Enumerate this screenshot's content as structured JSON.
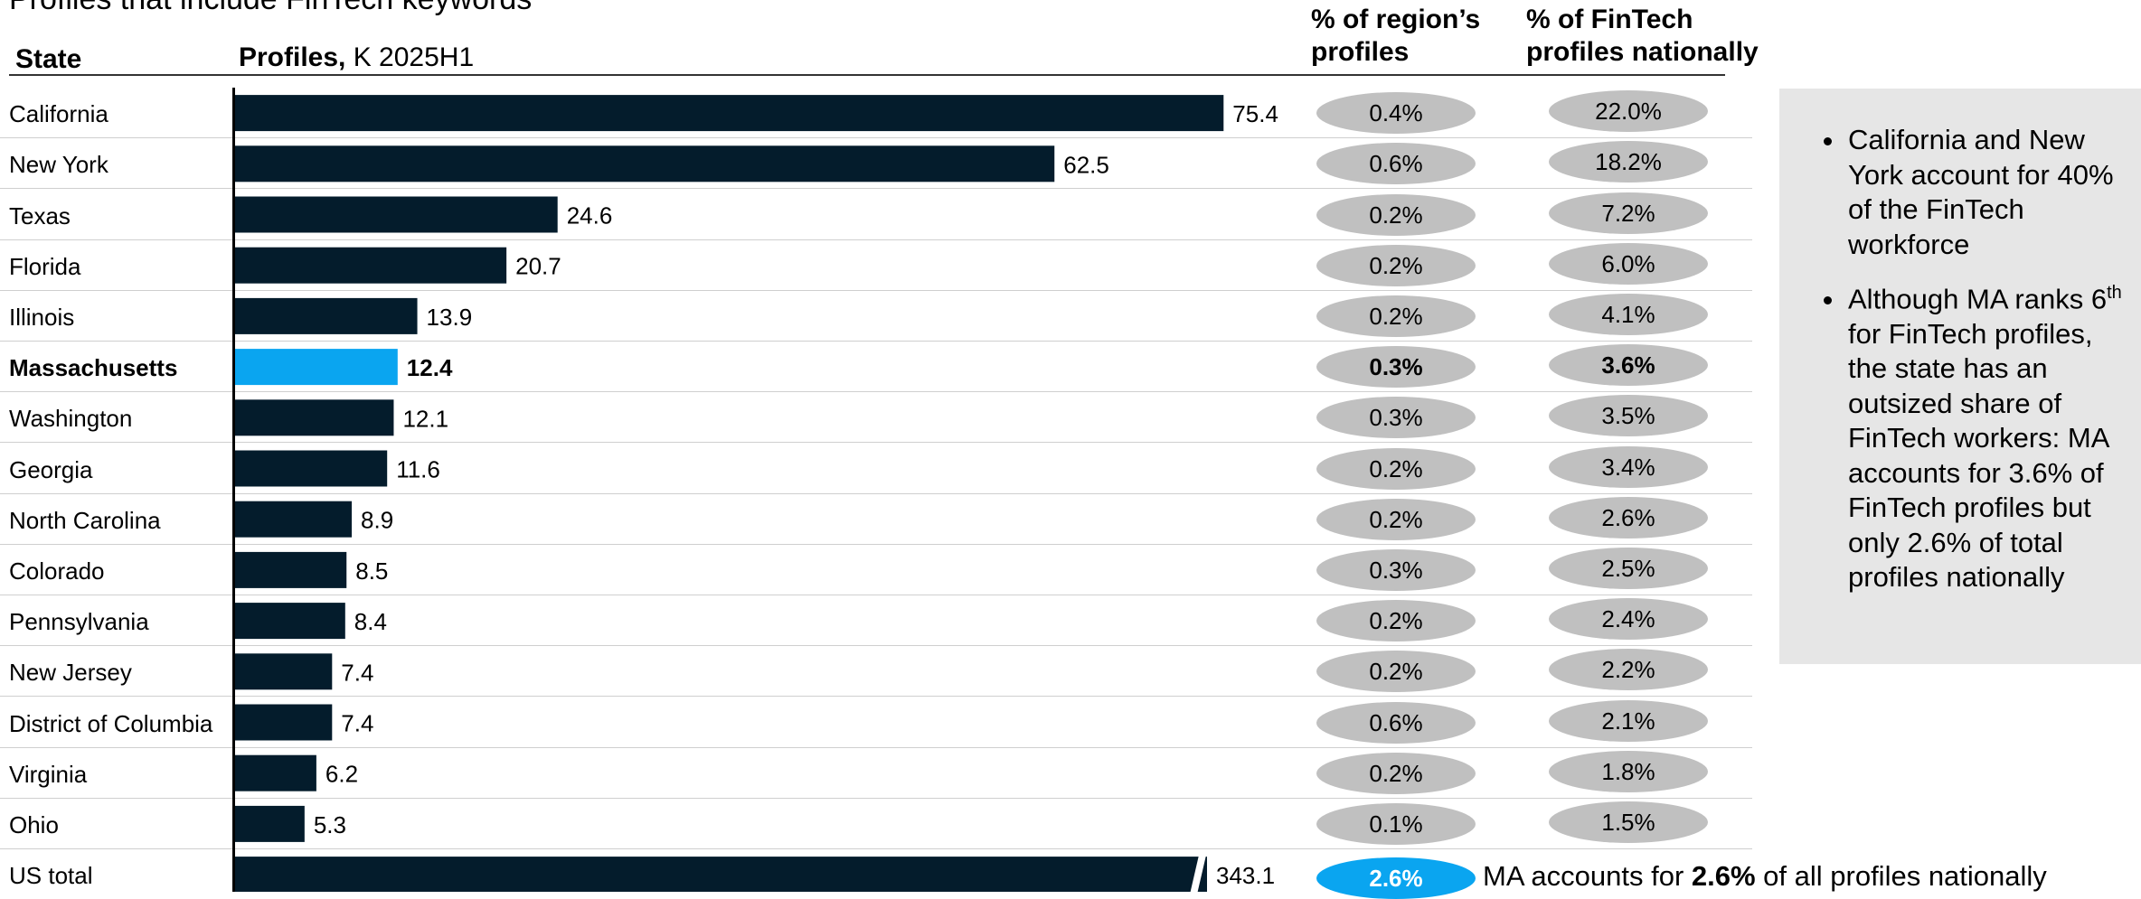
{
  "title": "Profiles that include FinTech keywords",
  "headers": {
    "state": "State",
    "profiles_bold": "Profiles,",
    "profiles_rest": " K 2025H1",
    "region_line1": "% of region’s",
    "region_line2": "profiles",
    "fintech_line1": "% of FinTech",
    "fintech_line2": "profiles nationally"
  },
  "chart_data": {
    "type": "bar",
    "orientation": "horizontal",
    "categories": [
      "California",
      "New York",
      "Texas",
      "Florida",
      "Illinois",
      "Massachusetts",
      "Washington",
      "Georgia",
      "North Carolina",
      "Colorado",
      "Pennsylvania",
      "New Jersey",
      "District of Columbia",
      "Virginia",
      "Ohio",
      "US total"
    ],
    "values": [
      75.4,
      62.5,
      24.6,
      20.7,
      13.9,
      12.4,
      12.1,
      11.6,
      8.9,
      8.5,
      8.4,
      7.4,
      7.4,
      6.2,
      5.3,
      343.1
    ],
    "value_labels": [
      "75.4",
      "62.5",
      "24.6",
      "20.7",
      "13.9",
      "12.4",
      "12.1",
      "11.6",
      "8.9",
      "8.5",
      "8.4",
      "7.4",
      "7.4",
      "6.2",
      "5.3",
      "343.1"
    ],
    "pct_region": [
      "0.4%",
      "0.6%",
      "0.2%",
      "0.2%",
      "0.2%",
      "0.3%",
      "0.3%",
      "0.2%",
      "0.2%",
      "0.3%",
      "0.2%",
      "0.2%",
      "0.6%",
      "0.2%",
      "0.1%",
      "2.6%"
    ],
    "pct_fintech": [
      "22.0%",
      "18.2%",
      "7.2%",
      "6.0%",
      "4.1%",
      "3.6%",
      "3.5%",
      "3.4%",
      "2.6%",
      "2.5%",
      "2.4%",
      "2.2%",
      "2.1%",
      "1.8%",
      "1.5%",
      ""
    ],
    "highlight_category": "Massachusetts",
    "total_bar_axis_break": true,
    "colors": {
      "bar": "#041c2c",
      "highlight": "#0aa5f0",
      "pill": "#c0c0c0"
    }
  },
  "callout": {
    "bullet1": "California and New York account for 40% of the FinTech workforce",
    "bullet2_a": "Although MA ranks 6",
    "bullet2_sup": "th",
    "bullet2_b": " for FinTech profiles, the state has an outsized share of FinTech workers: MA accounts for 3.6% of FinTech profiles but only 2.6% of total profiles nationally"
  },
  "total_note": {
    "prefix": "MA accounts for ",
    "bold": "2.6%",
    "suffix": " of all profiles nationally"
  }
}
